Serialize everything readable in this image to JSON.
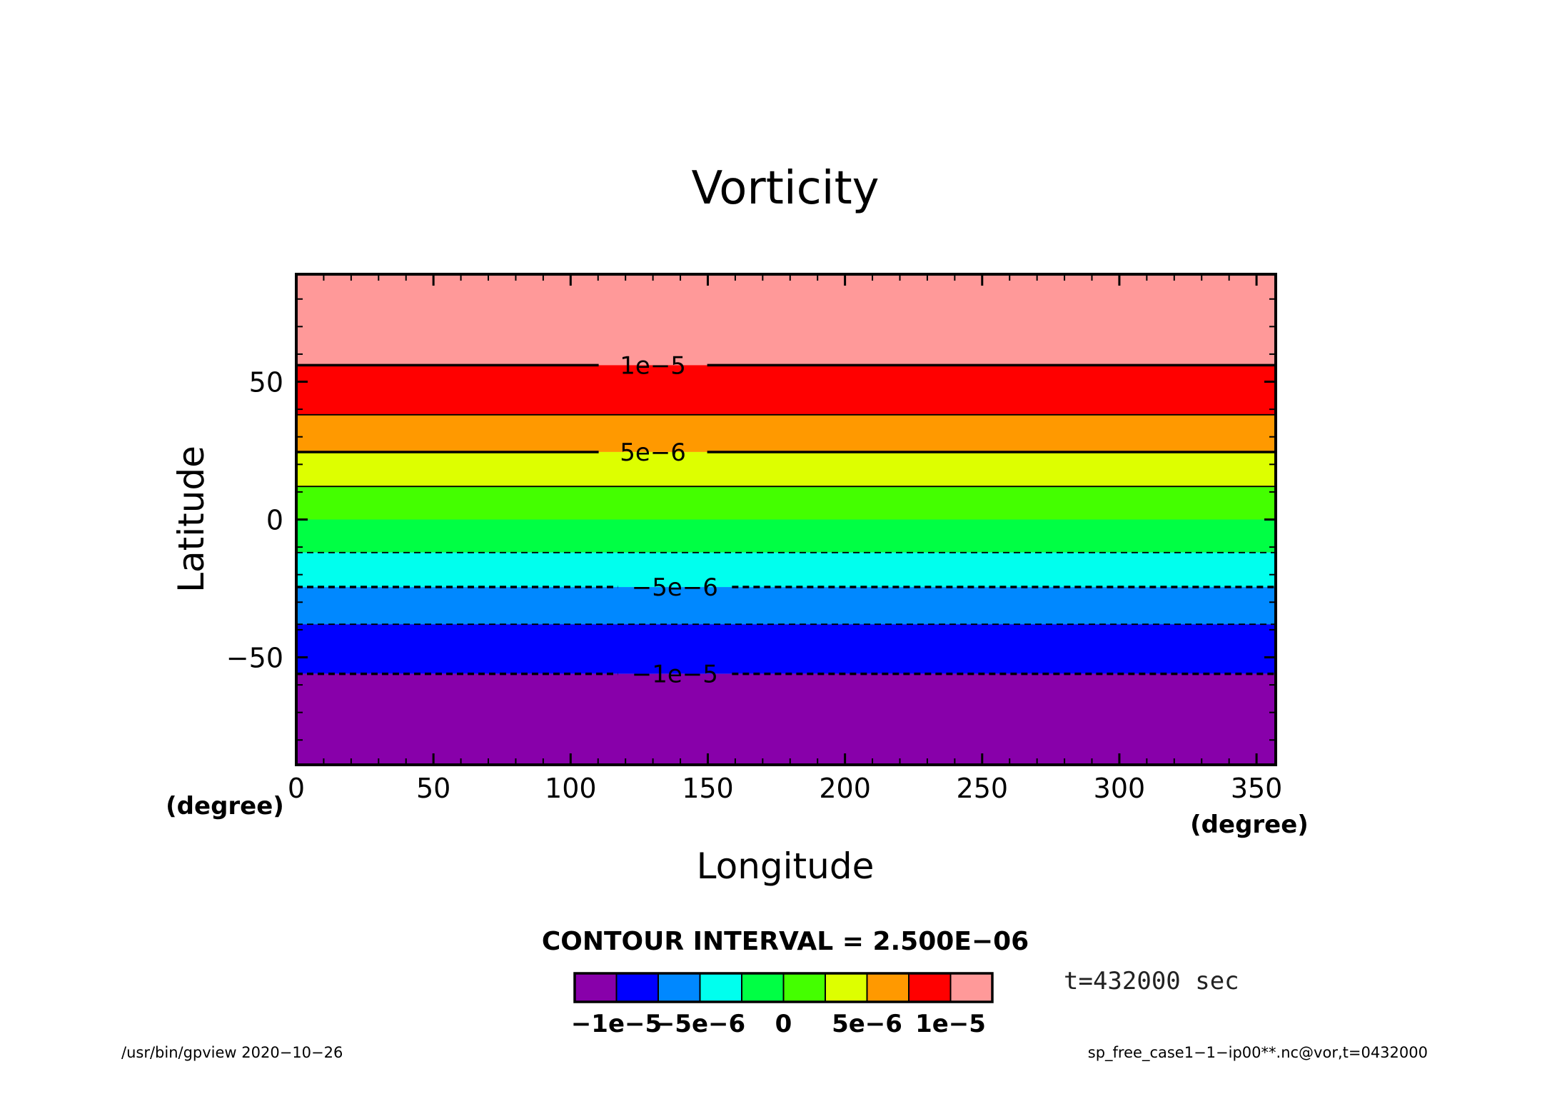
{
  "chart_data": {
    "type": "heatmap",
    "title": "Vorticity",
    "xlabel": "Longitude",
    "ylabel": "Latitude",
    "x_unit_label": "(degree)",
    "y_unit_label": "(degree)",
    "xlim": [
      0,
      357
    ],
    "ylim": [
      -89,
      89
    ],
    "x_ticks": [
      0,
      50,
      100,
      150,
      200,
      250,
      300,
      350
    ],
    "x_tick_labels": [
      "0",
      "50",
      "100",
      "150",
      "200",
      "250",
      "300",
      "350"
    ],
    "y_ticks": [
      50,
      0,
      -50
    ],
    "y_tick_labels": [
      "50",
      "0",
      "−50"
    ],
    "bands": [
      {
        "lat_min": 56,
        "lat_max": 89,
        "color": "#ff9999"
      },
      {
        "lat_min": 38,
        "lat_max": 56,
        "color": "#ff0000"
      },
      {
        "lat_min": 24.5,
        "lat_max": 38,
        "color": "#ff9900"
      },
      {
        "lat_min": 12,
        "lat_max": 24.5,
        "color": "#ddff00"
      },
      {
        "lat_min": 0,
        "lat_max": 12,
        "color": "#44ff00"
      },
      {
        "lat_min": -12,
        "lat_max": 0,
        "color": "#00ff44"
      },
      {
        "lat_min": -24.5,
        "lat_max": -12,
        "color": "#00ffee"
      },
      {
        "lat_min": -38,
        "lat_max": -24.5,
        "color": "#0088ff"
      },
      {
        "lat_min": -56,
        "lat_max": -38,
        "color": "#0000ff"
      },
      {
        "lat_min": -89,
        "lat_max": -56,
        "color": "#8800aa"
      }
    ],
    "contours": [
      {
        "lat": 56,
        "dashed": false,
        "thick": true,
        "label": "1e−5",
        "label_lon": 130
      },
      {
        "lat": 38,
        "dashed": false,
        "thick": false,
        "label": "",
        "label_lon": 0
      },
      {
        "lat": 24.5,
        "dashed": false,
        "thick": true,
        "label": "5e−6",
        "label_lon": 130
      },
      {
        "lat": 12,
        "dashed": false,
        "thick": false,
        "label": "",
        "label_lon": 0
      },
      {
        "lat": -12,
        "dashed": true,
        "thick": false,
        "label": "",
        "label_lon": 0
      },
      {
        "lat": -24.5,
        "dashed": true,
        "thick": true,
        "label": "−5e−6",
        "label_lon": 138
      },
      {
        "lat": -38,
        "dashed": true,
        "thick": false,
        "label": "",
        "label_lon": 0
      },
      {
        "lat": -56,
        "dashed": true,
        "thick": true,
        "label": "−1e−5",
        "label_lon": 138
      }
    ],
    "contour_interval_text": "CONTOUR INTERVAL = 2.500E−06",
    "colorbar": {
      "colors": [
        "#8800aa",
        "#0000ff",
        "#0088ff",
        "#00ffee",
        "#00ff44",
        "#44ff00",
        "#ddff00",
        "#ff9900",
        "#ff0000",
        "#ff9999"
      ],
      "labels": [
        "−1e−5",
        "−5e−6",
        "0",
        "5e−6",
        "1e−5"
      ]
    },
    "time_text": "t=432000 sec"
  },
  "footer": {
    "left": "/usr/bin/gpview   2020−10−26",
    "right": "sp_free_case1−1−ip00**.nc@vor,t=0432000"
  }
}
